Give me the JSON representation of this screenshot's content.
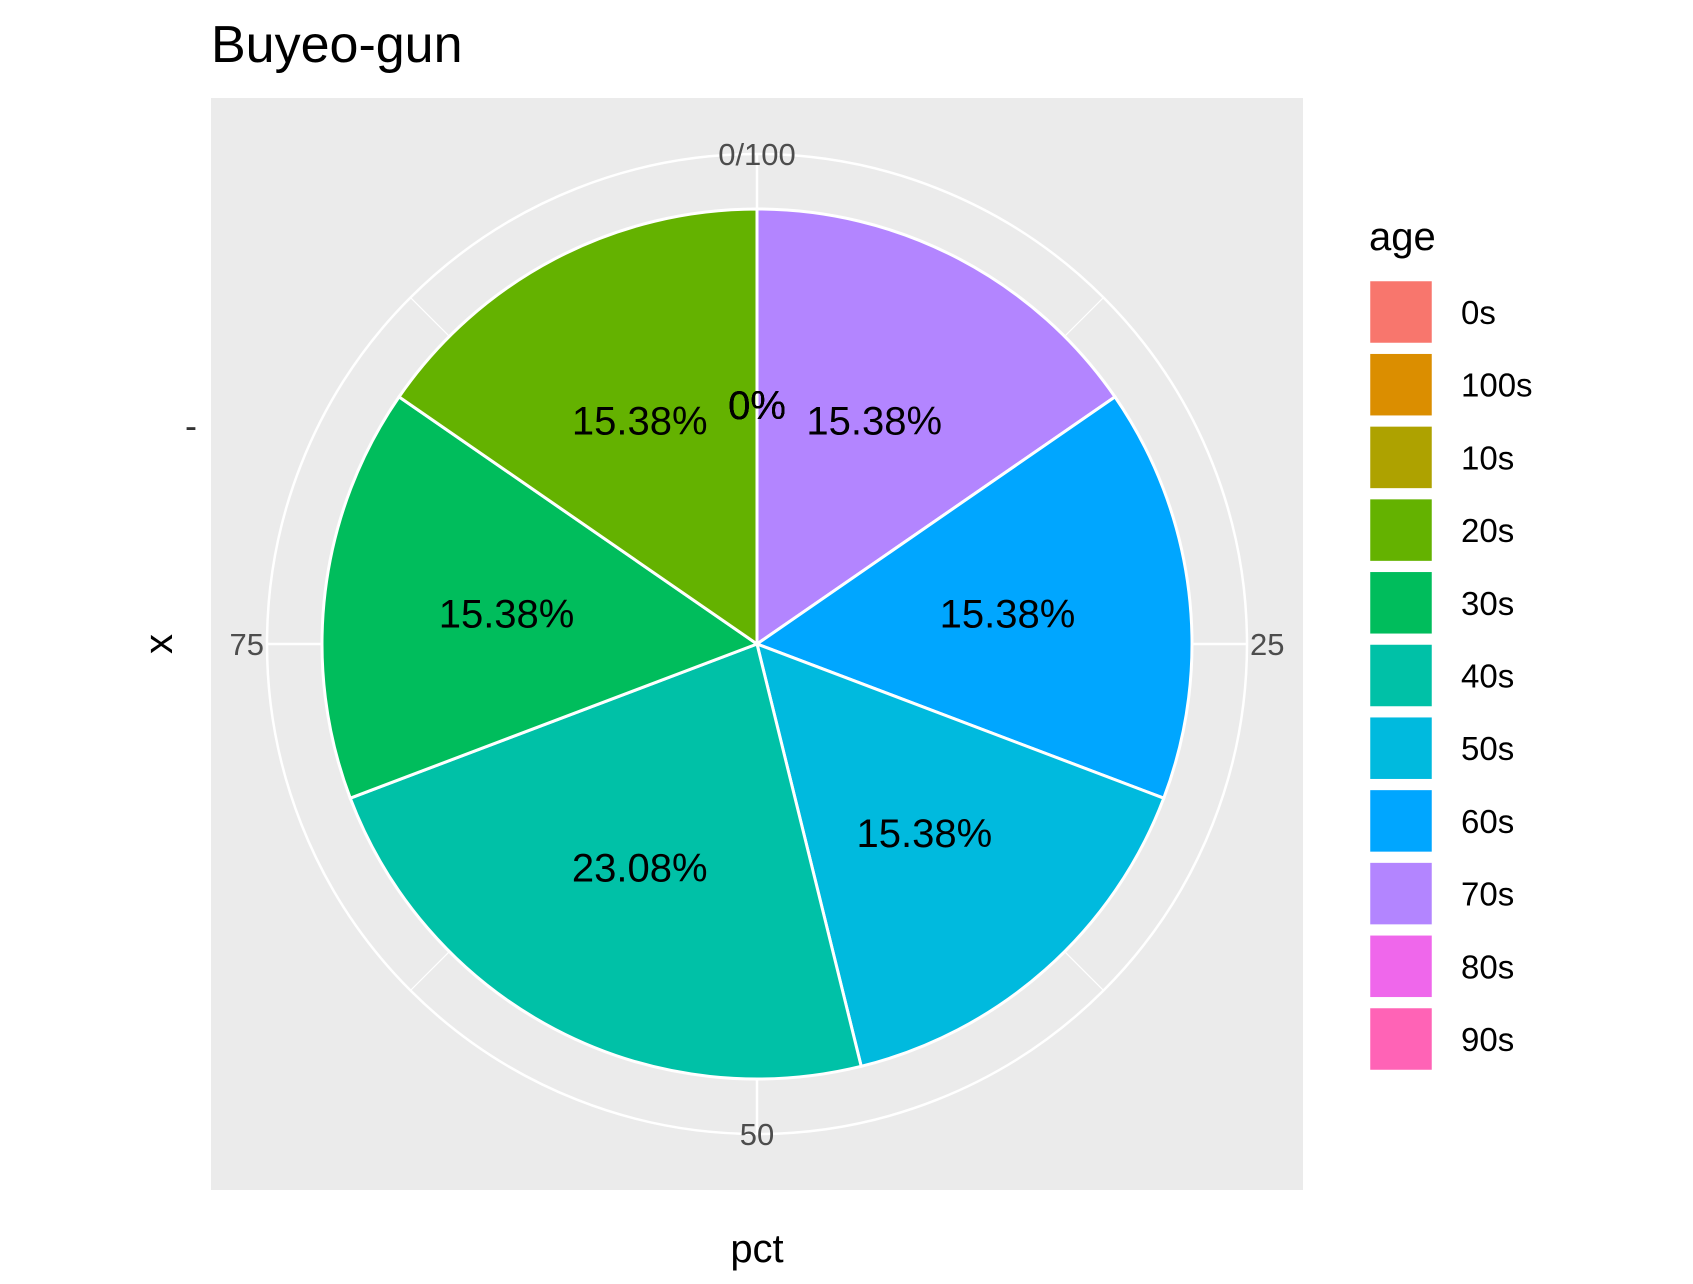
{
  "chart_data": {
    "type": "pie",
    "title": "Buyeo-gun",
    "xlabel": "pct",
    "ylabel": "x",
    "y_tick": "-",
    "angle_ticks": [
      "0/100",
      "25",
      "50",
      "75"
    ],
    "legend_title": "age",
    "legend_position": "right",
    "categories": [
      "0s",
      "100s",
      "10s",
      "20s",
      "30s",
      "40s",
      "50s",
      "60s",
      "70s",
      "80s",
      "90s"
    ],
    "values": [
      0,
      0,
      0,
      15.38,
      15.38,
      23.08,
      15.38,
      15.38,
      15.38,
      0,
      0
    ],
    "labels": [
      "0%",
      "0%",
      "0%",
      "15.38%",
      "15.38%",
      "23.08%",
      "15.38%",
      "15.38%",
      "15.38%",
      "0%",
      "0%"
    ],
    "colors": [
      "#F8766D",
      "#DB8E00",
      "#AEA200",
      "#64B200",
      "#00BD5C",
      "#00C1A7",
      "#00BADE",
      "#00A6FF",
      "#B385FF",
      "#EF67EB",
      "#FF63B6"
    ],
    "panel_background": "#EBEBEB",
    "grid": true
  }
}
